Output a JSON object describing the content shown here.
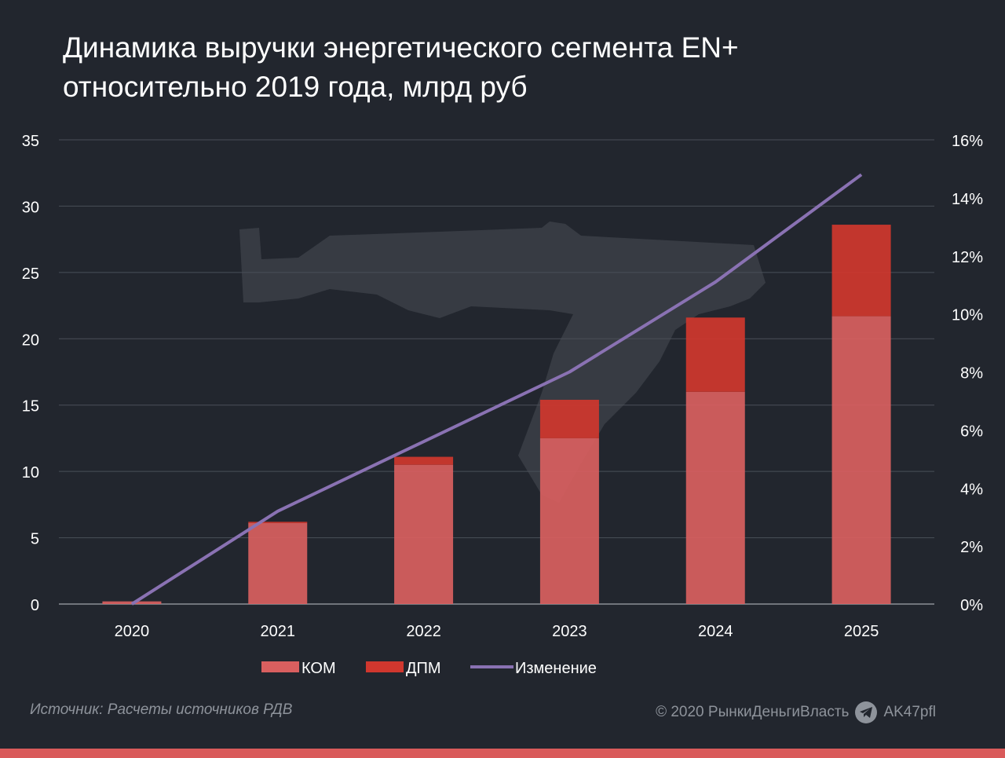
{
  "title_line1": "Динамика выручки энергетического сегмента EN+",
  "title_line2": "относительно 2019 года, млрд руб",
  "source": "Источник: Расчеты источников РДВ",
  "copyright": "© 2020  РынкиДеньгиВласть",
  "telegram_handle": "AK47pfl",
  "colors": {
    "background": "#22262e",
    "kom": "#d95f5f",
    "dpm": "#d0372e",
    "line": "#8a72b3",
    "grid": "#4a4f58",
    "text": "#ffffff"
  },
  "chart_data": {
    "type": "bar",
    "stacked": true,
    "categories": [
      "2020",
      "2021",
      "2022",
      "2023",
      "2024",
      "2025"
    ],
    "series": [
      {
        "name": "КОМ",
        "kind": "bar",
        "color": "#d95f5f",
        "values": [
          0.2,
          6.1,
          10.5,
          12.5,
          16.0,
          21.7
        ]
      },
      {
        "name": "ДПМ",
        "kind": "bar",
        "color": "#d0372e",
        "values": [
          0.0,
          0.1,
          0.6,
          2.9,
          5.6,
          6.9
        ]
      },
      {
        "name": "Изменение",
        "kind": "line",
        "axis": "right",
        "color": "#8a72b3",
        "values": [
          0.0,
          3.2,
          5.6,
          8.0,
          11.1,
          14.8
        ]
      }
    ],
    "ylim": [
      0,
      35
    ],
    "yticks": [
      "0",
      "5",
      "10",
      "15",
      "20",
      "25",
      "30",
      "35"
    ],
    "y2lim": [
      0,
      16
    ],
    "y2ticks": [
      "0%",
      "2%",
      "4%",
      "6%",
      "8%",
      "10%",
      "12%",
      "14%",
      "16%"
    ],
    "grid": true,
    "legend_position": "bottom"
  }
}
